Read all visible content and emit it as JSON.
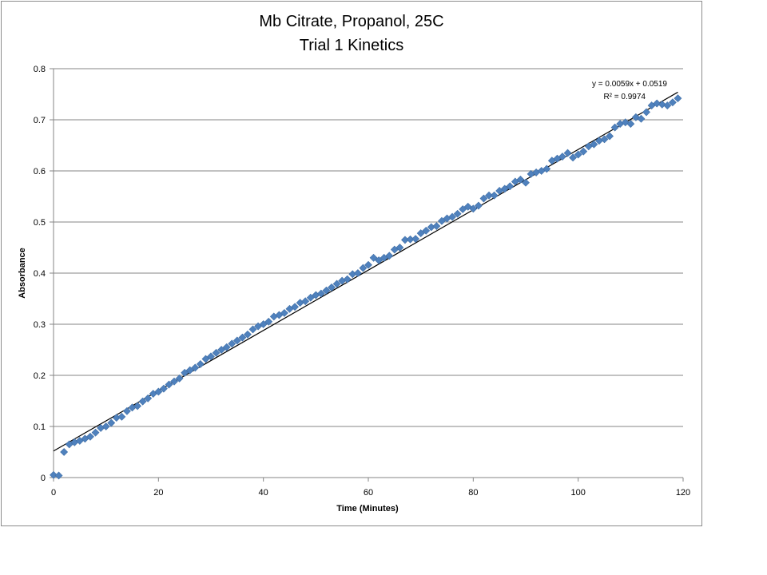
{
  "chart_data": {
    "type": "scatter",
    "title_line1": "Mb Citrate, Propanol, 25C",
    "title_line2": "Trial 1 Kinetics",
    "xlabel": "Time (Minutes)",
    "ylabel": "Absorbance",
    "xlim": [
      0,
      120
    ],
    "ylim": [
      0,
      0.8
    ],
    "xticks": [
      "0",
      "20",
      "40",
      "60",
      "80",
      "100",
      "120"
    ],
    "yticks": [
      "0",
      "0.1",
      "0.2",
      "0.3",
      "0.4",
      "0.5",
      "0.6",
      "0.7",
      "0.8"
    ],
    "grid": "horizontal",
    "legend": "none",
    "marker_color": "#4f81bd",
    "trendline": {
      "slope": 0.0059,
      "intercept": 0.0519,
      "equation": "y = 0.0059x + 0.0519",
      "r_squared": "R² = 0.9974",
      "color": "#000000"
    },
    "series": [
      {
        "x": [
          0,
          1,
          2,
          3,
          4,
          5,
          6,
          7,
          8,
          9,
          10,
          11,
          12,
          13,
          14,
          15,
          16,
          17,
          18,
          19,
          20,
          21,
          22,
          23,
          24,
          25,
          26,
          27,
          28,
          29,
          30,
          31,
          32,
          33,
          34,
          35,
          36,
          37,
          38,
          39,
          40,
          41,
          42,
          43,
          44,
          45,
          46,
          47,
          48,
          49,
          50,
          51,
          52,
          53,
          54,
          55,
          56,
          57,
          58,
          59,
          60,
          61,
          62,
          63,
          64,
          65,
          66,
          67,
          68,
          69,
          70,
          71,
          72,
          73,
          74,
          75,
          76,
          77,
          78,
          79,
          80,
          81,
          82,
          83,
          84,
          85,
          86,
          87,
          88,
          89,
          90,
          91,
          92,
          93,
          94,
          95,
          96,
          97,
          98,
          99,
          100,
          101,
          102,
          103,
          104,
          105,
          106,
          107,
          108,
          109,
          110,
          111,
          112,
          113,
          114,
          115,
          116,
          117,
          118,
          119
        ],
        "y": [
          0.005,
          0.004,
          0.05,
          0.065,
          0.069,
          0.072,
          0.076,
          0.08,
          0.088,
          0.097,
          0.1,
          0.107,
          0.117,
          0.119,
          0.13,
          0.137,
          0.14,
          0.149,
          0.155,
          0.164,
          0.168,
          0.174,
          0.182,
          0.188,
          0.194,
          0.205,
          0.21,
          0.215,
          0.222,
          0.232,
          0.237,
          0.244,
          0.25,
          0.255,
          0.262,
          0.268,
          0.274,
          0.28,
          0.29,
          0.296,
          0.3,
          0.305,
          0.315,
          0.318,
          0.322,
          0.33,
          0.334,
          0.342,
          0.345,
          0.352,
          0.357,
          0.36,
          0.366,
          0.372,
          0.379,
          0.385,
          0.388,
          0.398,
          0.4,
          0.41,
          0.416,
          0.43,
          0.425,
          0.43,
          0.434,
          0.446,
          0.45,
          0.465,
          0.466,
          0.467,
          0.478,
          0.483,
          0.49,
          0.492,
          0.502,
          0.507,
          0.51,
          0.516,
          0.525,
          0.53,
          0.526,
          0.532,
          0.546,
          0.552,
          0.552,
          0.561,
          0.565,
          0.57,
          0.579,
          0.583,
          0.577,
          0.594,
          0.597,
          0.6,
          0.604,
          0.62,
          0.624,
          0.628,
          0.635,
          0.626,
          0.632,
          0.638,
          0.648,
          0.652,
          0.659,
          0.662,
          0.668,
          0.685,
          0.692,
          0.695,
          0.692,
          0.705,
          0.702,
          0.715,
          0.728,
          0.732,
          0.73,
          0.728,
          0.734,
          0.742
        ]
      }
    ]
  }
}
